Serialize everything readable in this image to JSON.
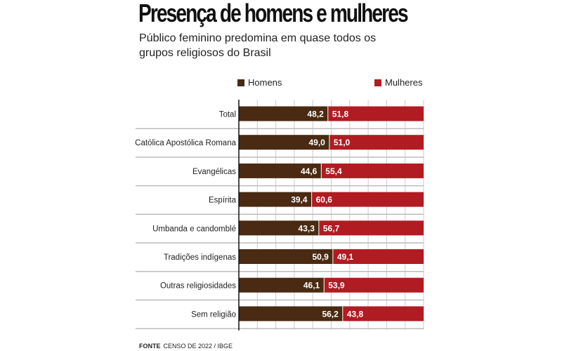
{
  "title": "Presença de homens e mulheres",
  "subtitle": "Público feminino predomina em quase todos os grupos religiosos do Brasil",
  "source_label": "FONTE",
  "source_text": "CENSO DE 2022 / IBGE",
  "colors": {
    "homens": "#4a2a12",
    "mulheres": "#b01c22",
    "grid": "#cccccc",
    "separator": "#bbbbbb"
  },
  "chart_data": {
    "type": "bar",
    "stacked": true,
    "orientation": "horizontal",
    "title": "Presença de homens e mulheres",
    "categories": [
      "Total",
      "Católica Apostólica Romana",
      "Evangélicas",
      "Espírita",
      "Umbanda e candomblé",
      "Tradições indígenas",
      "Outras religiosidades",
      "Sem religião"
    ],
    "series": [
      {
        "name": "Homens",
        "values": [
          48.2,
          49.0,
          44.6,
          39.4,
          43.3,
          50.9,
          46.1,
          56.2
        ],
        "labels": [
          "48,2",
          "49,0",
          "44,6",
          "39,4",
          "43,3",
          "50,9",
          "46,1",
          "56,2"
        ]
      },
      {
        "name": "Mulheres",
        "values": [
          51.8,
          51.0,
          55.4,
          60.6,
          56.7,
          49.1,
          53.9,
          43.8
        ],
        "labels": [
          "51,8",
          "51,0",
          "55,4",
          "60,6",
          "56,7",
          "49,1",
          "53,9",
          "43,8"
        ]
      }
    ],
    "xlim": [
      0,
      100
    ],
    "grid": true,
    "legend_position": "top"
  }
}
